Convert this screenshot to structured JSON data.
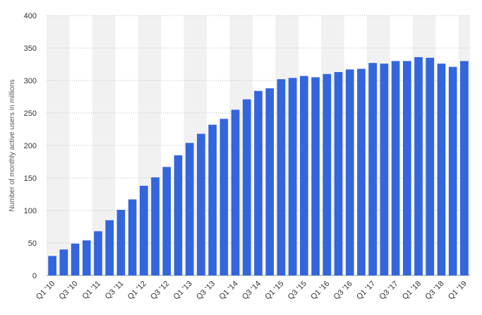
{
  "chart_data": {
    "type": "bar",
    "ylabel": "Number of monthly active users in millions",
    "ylim": [
      0,
      400
    ],
    "yticks": [
      0,
      50,
      100,
      150,
      200,
      250,
      300,
      350,
      400
    ],
    "grid": "horizontal dotted",
    "bar_color": "#3366dd",
    "band_color": "#f1f1f1",
    "categories": [
      "Q1 '10",
      "Q2 '10",
      "Q3 '10",
      "Q4 '10",
      "Q1 '11",
      "Q2 '11",
      "Q3 '11",
      "Q4 '11",
      "Q1 '12",
      "Q2 '12",
      "Q3 '12",
      "Q4 '12",
      "Q1 '13",
      "Q2 '13",
      "Q3 '13",
      "Q4 '13",
      "Q1 '14",
      "Q2 '14",
      "Q3 '14",
      "Q4 '14",
      "Q1 '15",
      "Q2 '15",
      "Q3 '15",
      "Q4 '15",
      "Q1 '16",
      "Q2 '16",
      "Q3 '16",
      "Q4 '16",
      "Q1 '17",
      "Q2 '17",
      "Q3 '17",
      "Q4 '17",
      "Q1 '18",
      "Q2 '18",
      "Q3 '18",
      "Q4 '18",
      "Q1 '19"
    ],
    "visible_tick_labels": [
      "Q1 '10",
      "Q3 '10",
      "Q1 '11",
      "Q3 '11",
      "Q1 '12",
      "Q3 '12",
      "Q1 '13",
      "Q3 '13",
      "Q1 '14",
      "Q3 '14",
      "Q1 '15",
      "Q3 '15",
      "Q1 '16",
      "Q3 '16",
      "Q1 '17",
      "Q3 '17",
      "Q1 '18",
      "Q3 '18",
      "Q1 '19"
    ],
    "values": [
      30,
      40,
      49,
      54,
      68,
      85,
      101,
      117,
      138,
      151,
      167,
      185,
      204,
      218,
      232,
      241,
      255,
      271,
      284,
      288,
      302,
      304,
      307,
      305,
      310,
      313,
      317,
      318,
      327,
      326,
      330,
      330,
      336,
      335,
      326,
      321,
      330
    ]
  }
}
